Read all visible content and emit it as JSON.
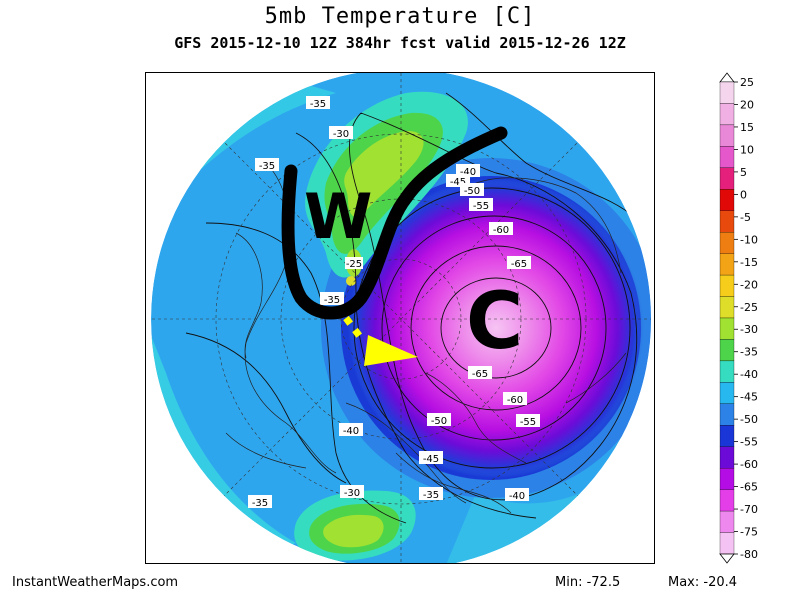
{
  "title": "5mb Temperature [C]",
  "subtitle": "GFS 2015-12-10 12Z 384hr fcst valid 2015-12-26 12Z",
  "footer": {
    "source": "InstantWeatherMaps.com",
    "min_label": "Min:",
    "min_value": "-72.5",
    "max_label": "Max:",
    "max_value": "-20.4"
  },
  "colorbar": {
    "ticks": [
      "25",
      "20",
      "15",
      "10",
      "5",
      "0",
      "-5",
      "-10",
      "-15",
      "-20",
      "-25",
      "-30",
      "-35",
      "-40",
      "-45",
      "-50",
      "-55",
      "-60",
      "-65",
      "-70",
      "-75",
      "-80"
    ],
    "colors": [
      "#f5d4ee",
      "#f0b0e4",
      "#ea88d8",
      "#e458cc",
      "#e41f7c",
      "#e10808",
      "#e74a0c",
      "#ef7e12",
      "#f2a316",
      "#f6cd1a",
      "#dede2a",
      "#a0e132",
      "#4ed44a",
      "#36dcc0",
      "#28b8f0",
      "#2c82e6",
      "#1a36d6",
      "#6c0ad8",
      "#b40ce4",
      "#e43ee8",
      "#ef88ee",
      "#f5c2f4"
    ]
  },
  "contour_labels": [
    {
      "name": "label-m35-a",
      "text": "-35"
    },
    {
      "name": "label-m30-a",
      "text": "-30"
    },
    {
      "name": "label-m35-b",
      "text": "-35"
    },
    {
      "name": "label-m40-a",
      "text": "-40"
    },
    {
      "name": "label-m45-a",
      "text": "-45"
    },
    {
      "name": "label-m50-a",
      "text": "-50"
    },
    {
      "name": "label-m55-a",
      "text": "-55"
    },
    {
      "name": "label-m60-a",
      "text": "-60"
    },
    {
      "name": "label-m65-a",
      "text": "-65"
    },
    {
      "name": "label-m65-b",
      "text": "-65"
    },
    {
      "name": "label-m60-b",
      "text": "-60"
    },
    {
      "name": "label-m55-b",
      "text": "-55"
    },
    {
      "name": "label-m50-b",
      "text": "-50"
    },
    {
      "name": "label-m40-b",
      "text": "-40"
    },
    {
      "name": "label-m45-b",
      "text": "-45"
    },
    {
      "name": "label-m35-c",
      "text": "-35"
    },
    {
      "name": "label-m30-b",
      "text": "-30"
    },
    {
      "name": "label-m35-d",
      "text": "-35"
    },
    {
      "name": "label-m40-c",
      "text": "-40"
    },
    {
      "name": "label-m25-a",
      "text": "-25"
    },
    {
      "name": "label-m35-e",
      "text": "-35"
    }
  ],
  "annotations": {
    "warm_letter": "W",
    "cold_letter": "C",
    "warm_color": "#000000",
    "arrow_color": "#ffff00"
  }
}
